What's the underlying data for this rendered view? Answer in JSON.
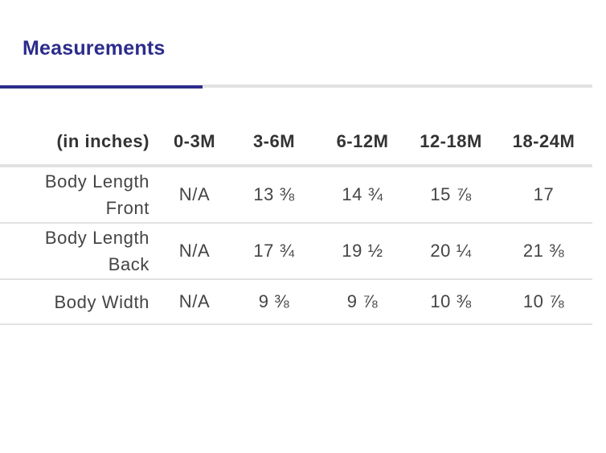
{
  "tabs": {
    "active_label": "Measurements"
  },
  "table": {
    "columns": [
      "(in inches)",
      "0-3M",
      "3-6M",
      "6-12M",
      "12-18M",
      "18-24M"
    ],
    "rows": [
      {
        "label": "Body Length Front",
        "values": [
          "N/A",
          "13 ⅜",
          "14 ¾",
          "15 ⅞",
          "17"
        ]
      },
      {
        "label": "Body Length Back",
        "values": [
          "N/A",
          "17 ¾",
          "19 ½",
          "20 ¼",
          "21 ⅜"
        ]
      },
      {
        "label": "Body Width",
        "values": [
          "N/A",
          "9 ⅜",
          "9 ⅞",
          "10 ⅜",
          "10 ⅞"
        ]
      }
    ]
  }
}
